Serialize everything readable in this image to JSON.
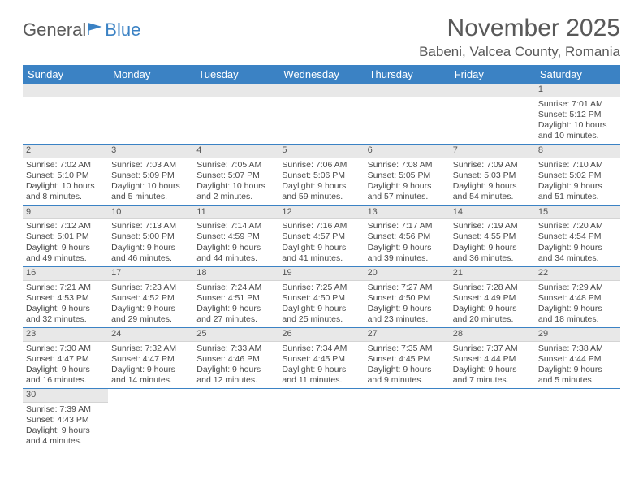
{
  "logo": {
    "part1": "General",
    "part2": "Blue",
    "flag_color": "#3b82c4"
  },
  "header": {
    "month_title": "November 2025",
    "location": "Babeni, Valcea County, Romania"
  },
  "colors": {
    "header_bar": "#3b82c4",
    "day_num_bg": "#e8e8e8",
    "text": "#4a4a4a",
    "title_text": "#595959",
    "week_border": "#3b82c4"
  },
  "typography": {
    "month_title_fontsize": 30,
    "location_fontsize": 17,
    "weekday_fontsize": 13,
    "day_fontsize": 10.5
  },
  "weekdays": [
    "Sunday",
    "Monday",
    "Tuesday",
    "Wednesday",
    "Thursday",
    "Friday",
    "Saturday"
  ],
  "weeks": [
    [
      null,
      null,
      null,
      null,
      null,
      null,
      {
        "n": "1",
        "sunrise": "Sunrise: 7:01 AM",
        "sunset": "Sunset: 5:12 PM",
        "dl1": "Daylight: 10 hours",
        "dl2": "and 10 minutes."
      }
    ],
    [
      {
        "n": "2",
        "sunrise": "Sunrise: 7:02 AM",
        "sunset": "Sunset: 5:10 PM",
        "dl1": "Daylight: 10 hours",
        "dl2": "and 8 minutes."
      },
      {
        "n": "3",
        "sunrise": "Sunrise: 7:03 AM",
        "sunset": "Sunset: 5:09 PM",
        "dl1": "Daylight: 10 hours",
        "dl2": "and 5 minutes."
      },
      {
        "n": "4",
        "sunrise": "Sunrise: 7:05 AM",
        "sunset": "Sunset: 5:07 PM",
        "dl1": "Daylight: 10 hours",
        "dl2": "and 2 minutes."
      },
      {
        "n": "5",
        "sunrise": "Sunrise: 7:06 AM",
        "sunset": "Sunset: 5:06 PM",
        "dl1": "Daylight: 9 hours",
        "dl2": "and 59 minutes."
      },
      {
        "n": "6",
        "sunrise": "Sunrise: 7:08 AM",
        "sunset": "Sunset: 5:05 PM",
        "dl1": "Daylight: 9 hours",
        "dl2": "and 57 minutes."
      },
      {
        "n": "7",
        "sunrise": "Sunrise: 7:09 AM",
        "sunset": "Sunset: 5:03 PM",
        "dl1": "Daylight: 9 hours",
        "dl2": "and 54 minutes."
      },
      {
        "n": "8",
        "sunrise": "Sunrise: 7:10 AM",
        "sunset": "Sunset: 5:02 PM",
        "dl1": "Daylight: 9 hours",
        "dl2": "and 51 minutes."
      }
    ],
    [
      {
        "n": "9",
        "sunrise": "Sunrise: 7:12 AM",
        "sunset": "Sunset: 5:01 PM",
        "dl1": "Daylight: 9 hours",
        "dl2": "and 49 minutes."
      },
      {
        "n": "10",
        "sunrise": "Sunrise: 7:13 AM",
        "sunset": "Sunset: 5:00 PM",
        "dl1": "Daylight: 9 hours",
        "dl2": "and 46 minutes."
      },
      {
        "n": "11",
        "sunrise": "Sunrise: 7:14 AM",
        "sunset": "Sunset: 4:59 PM",
        "dl1": "Daylight: 9 hours",
        "dl2": "and 44 minutes."
      },
      {
        "n": "12",
        "sunrise": "Sunrise: 7:16 AM",
        "sunset": "Sunset: 4:57 PM",
        "dl1": "Daylight: 9 hours",
        "dl2": "and 41 minutes."
      },
      {
        "n": "13",
        "sunrise": "Sunrise: 7:17 AM",
        "sunset": "Sunset: 4:56 PM",
        "dl1": "Daylight: 9 hours",
        "dl2": "and 39 minutes."
      },
      {
        "n": "14",
        "sunrise": "Sunrise: 7:19 AM",
        "sunset": "Sunset: 4:55 PM",
        "dl1": "Daylight: 9 hours",
        "dl2": "and 36 minutes."
      },
      {
        "n": "15",
        "sunrise": "Sunrise: 7:20 AM",
        "sunset": "Sunset: 4:54 PM",
        "dl1": "Daylight: 9 hours",
        "dl2": "and 34 minutes."
      }
    ],
    [
      {
        "n": "16",
        "sunrise": "Sunrise: 7:21 AM",
        "sunset": "Sunset: 4:53 PM",
        "dl1": "Daylight: 9 hours",
        "dl2": "and 32 minutes."
      },
      {
        "n": "17",
        "sunrise": "Sunrise: 7:23 AM",
        "sunset": "Sunset: 4:52 PM",
        "dl1": "Daylight: 9 hours",
        "dl2": "and 29 minutes."
      },
      {
        "n": "18",
        "sunrise": "Sunrise: 7:24 AM",
        "sunset": "Sunset: 4:51 PM",
        "dl1": "Daylight: 9 hours",
        "dl2": "and 27 minutes."
      },
      {
        "n": "19",
        "sunrise": "Sunrise: 7:25 AM",
        "sunset": "Sunset: 4:50 PM",
        "dl1": "Daylight: 9 hours",
        "dl2": "and 25 minutes."
      },
      {
        "n": "20",
        "sunrise": "Sunrise: 7:27 AM",
        "sunset": "Sunset: 4:50 PM",
        "dl1": "Daylight: 9 hours",
        "dl2": "and 23 minutes."
      },
      {
        "n": "21",
        "sunrise": "Sunrise: 7:28 AM",
        "sunset": "Sunset: 4:49 PM",
        "dl1": "Daylight: 9 hours",
        "dl2": "and 20 minutes."
      },
      {
        "n": "22",
        "sunrise": "Sunrise: 7:29 AM",
        "sunset": "Sunset: 4:48 PM",
        "dl1": "Daylight: 9 hours",
        "dl2": "and 18 minutes."
      }
    ],
    [
      {
        "n": "23",
        "sunrise": "Sunrise: 7:30 AM",
        "sunset": "Sunset: 4:47 PM",
        "dl1": "Daylight: 9 hours",
        "dl2": "and 16 minutes."
      },
      {
        "n": "24",
        "sunrise": "Sunrise: 7:32 AM",
        "sunset": "Sunset: 4:47 PM",
        "dl1": "Daylight: 9 hours",
        "dl2": "and 14 minutes."
      },
      {
        "n": "25",
        "sunrise": "Sunrise: 7:33 AM",
        "sunset": "Sunset: 4:46 PM",
        "dl1": "Daylight: 9 hours",
        "dl2": "and 12 minutes."
      },
      {
        "n": "26",
        "sunrise": "Sunrise: 7:34 AM",
        "sunset": "Sunset: 4:45 PM",
        "dl1": "Daylight: 9 hours",
        "dl2": "and 11 minutes."
      },
      {
        "n": "27",
        "sunrise": "Sunrise: 7:35 AM",
        "sunset": "Sunset: 4:45 PM",
        "dl1": "Daylight: 9 hours",
        "dl2": "and 9 minutes."
      },
      {
        "n": "28",
        "sunrise": "Sunrise: 7:37 AM",
        "sunset": "Sunset: 4:44 PM",
        "dl1": "Daylight: 9 hours",
        "dl2": "and 7 minutes."
      },
      {
        "n": "29",
        "sunrise": "Sunrise: 7:38 AM",
        "sunset": "Sunset: 4:44 PM",
        "dl1": "Daylight: 9 hours",
        "dl2": "and 5 minutes."
      }
    ],
    [
      {
        "n": "30",
        "sunrise": "Sunrise: 7:39 AM",
        "sunset": "Sunset: 4:43 PM",
        "dl1": "Daylight: 9 hours",
        "dl2": "and 4 minutes."
      },
      null,
      null,
      null,
      null,
      null,
      null
    ]
  ]
}
